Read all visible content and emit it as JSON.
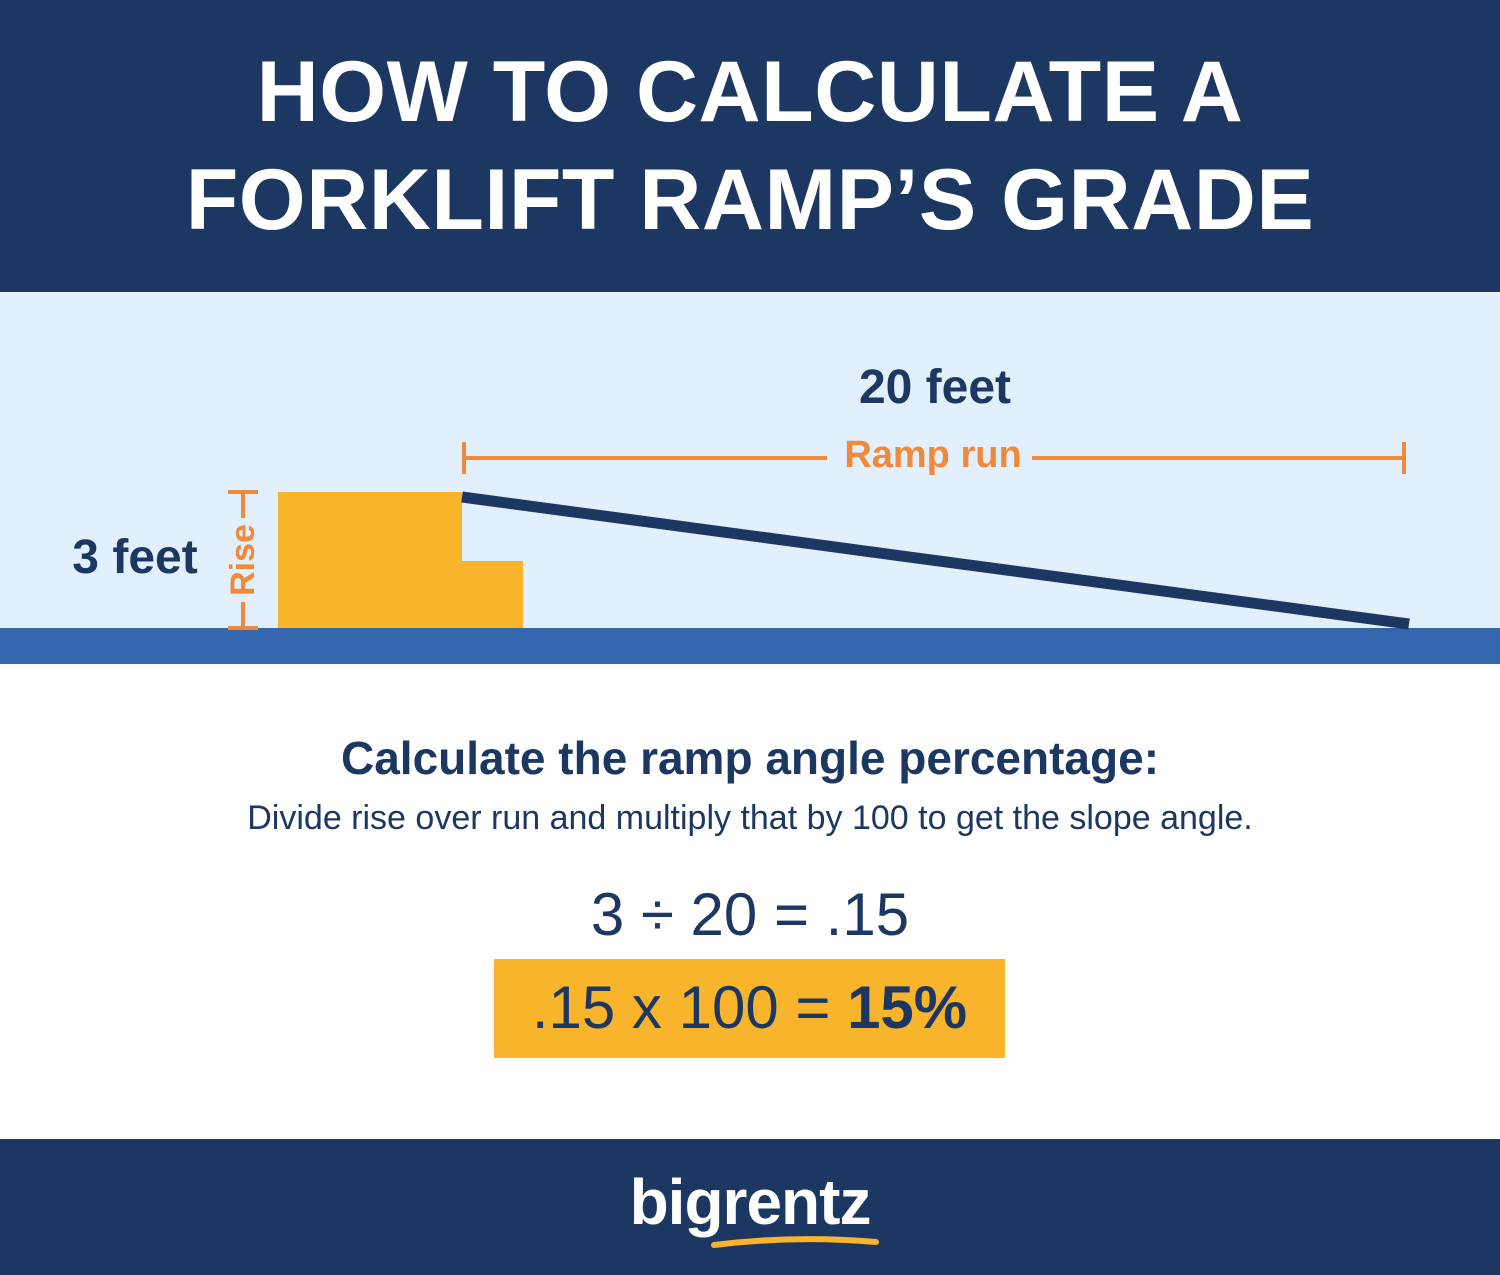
{
  "header": {
    "title_line1": "HOW TO CALCULATE A",
    "title_line2": "FORKLIFT RAMP’S GRADE"
  },
  "diagram": {
    "run_value": "20 feet",
    "run_label": "Ramp run",
    "rise_value": "3 feet",
    "rise_label": "Rise",
    "rise_feet": 3,
    "run_feet": 20
  },
  "calculation": {
    "heading": "Calculate the ramp angle percentage:",
    "description": "Divide rise over run and multiply that by 100 to get the slope angle.",
    "equation1": "3 ÷ 20 = .15",
    "equation2_expression": ".15 x 100 = ",
    "equation2_result": "15%"
  },
  "footer": {
    "logo_text": "bigrentz"
  },
  "colors": {
    "navy": "#1c3862",
    "light_blue": "#e2effc",
    "ground_blue": "#3467ad",
    "yellow": "#f8b42a",
    "orange": "#f08a3a",
    "white": "#ffffff"
  }
}
